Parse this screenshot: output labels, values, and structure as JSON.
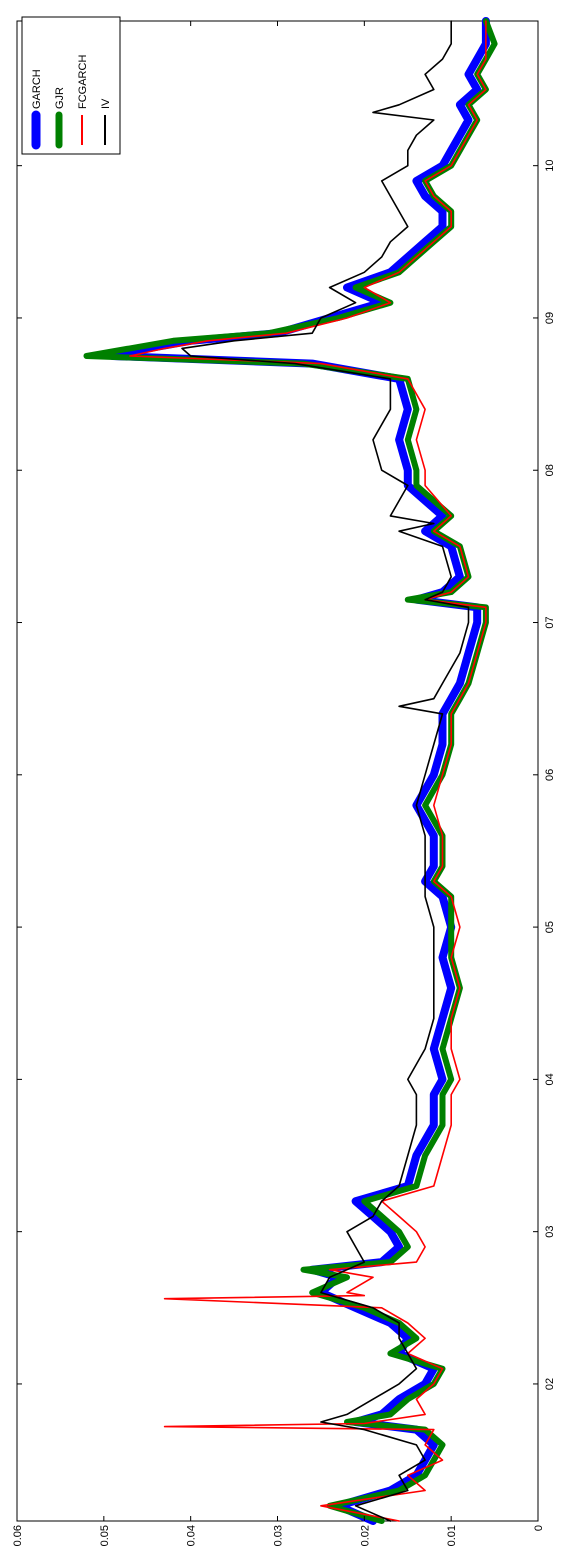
{
  "chart_data": {
    "type": "line",
    "title": "",
    "xlabel": "",
    "ylabel": "",
    "orientation": "rotated-90",
    "xlim": [
      2001.1,
      2010.95
    ],
    "ylim": [
      0,
      0.06
    ],
    "x_ticks": [
      2002,
      2003,
      2004,
      2005,
      2006,
      2007,
      2008,
      2009,
      2010
    ],
    "x_tick_labels": [
      "02",
      "03",
      "04",
      "05",
      "06",
      "07",
      "08",
      "09",
      "10"
    ],
    "y_ticks": [
      0,
      0.01,
      0.02,
      0.03,
      0.04,
      0.05,
      0.06
    ],
    "y_tick_labels": [
      "0",
      "0.01",
      "0.02",
      "0.03",
      "0.04",
      "0.05",
      "0.06"
    ],
    "grid": false,
    "legend_position": "top-right",
    "legend": [
      "GARCH",
      "GJR",
      "FCGARCH",
      "IV"
    ],
    "series": [
      {
        "name": "GARCH",
        "color": "#0000ff",
        "style": "thick",
        "x": [
          2001.1,
          2001.2,
          2001.3,
          2001.4,
          2001.5,
          2001.6,
          2001.7,
          2001.75,
          2001.8,
          2001.9,
          2002.0,
          2002.1,
          2002.2,
          2002.3,
          2002.4,
          2002.5,
          2002.6,
          2002.7,
          2002.75,
          2002.8,
          2002.9,
          2003.0,
          2003.1,
          2003.2,
          2003.3,
          2003.5,
          2003.7,
          2003.9,
          2004.0,
          2004.2,
          2004.4,
          2004.6,
          2004.8,
          2005.0,
          2005.2,
          2005.3,
          2005.4,
          2005.6,
          2005.8,
          2006.0,
          2006.2,
          2006.4,
          2006.5,
          2006.6,
          2006.8,
          2007.0,
          2007.1,
          2007.15,
          2007.2,
          2007.3,
          2007.5,
          2007.6,
          2007.7,
          2007.9,
          2008.0,
          2008.2,
          2008.4,
          2008.6,
          2008.7,
          2008.75,
          2008.8,
          2008.85,
          2008.9,
          2009.0,
          2009.1,
          2009.2,
          2009.3,
          2009.4,
          2009.5,
          2009.6,
          2009.7,
          2009.8,
          2009.9,
          2010.0,
          2010.1,
          2010.2,
          2010.3,
          2010.4,
          2010.5,
          2010.6,
          2010.7,
          2010.8,
          2010.95
        ],
        "values": [
          0.019,
          0.023,
          0.017,
          0.014,
          0.013,
          0.012,
          0.014,
          0.021,
          0.018,
          0.016,
          0.013,
          0.012,
          0.016,
          0.015,
          0.017,
          0.021,
          0.025,
          0.023,
          0.026,
          0.018,
          0.016,
          0.017,
          0.019,
          0.021,
          0.015,
          0.014,
          0.012,
          0.012,
          0.011,
          0.012,
          0.011,
          0.01,
          0.011,
          0.01,
          0.011,
          0.013,
          0.012,
          0.012,
          0.014,
          0.012,
          0.011,
          0.011,
          0.01,
          0.009,
          0.008,
          0.007,
          0.007,
          0.014,
          0.011,
          0.009,
          0.01,
          0.013,
          0.011,
          0.015,
          0.015,
          0.016,
          0.015,
          0.016,
          0.026,
          0.049,
          0.045,
          0.04,
          0.03,
          0.024,
          0.018,
          0.022,
          0.017,
          0.015,
          0.013,
          0.011,
          0.011,
          0.013,
          0.014,
          0.011,
          0.01,
          0.009,
          0.008,
          0.009,
          0.007,
          0.008,
          0.007,
          0.006,
          0.006
        ]
      },
      {
        "name": "GJR",
        "color": "#008000",
        "style": "thick",
        "x": [
          2001.1,
          2001.2,
          2001.3,
          2001.4,
          2001.5,
          2001.6,
          2001.7,
          2001.75,
          2001.8,
          2001.9,
          2002.0,
          2002.1,
          2002.2,
          2002.3,
          2002.4,
          2002.5,
          2002.6,
          2002.7,
          2002.75,
          2002.8,
          2002.9,
          2003.0,
          2003.1,
          2003.2,
          2003.3,
          2003.5,
          2003.7,
          2003.9,
          2004.0,
          2004.2,
          2004.4,
          2004.6,
          2004.8,
          2005.0,
          2005.2,
          2005.3,
          2005.4,
          2005.6,
          2005.8,
          2006.0,
          2006.2,
          2006.4,
          2006.5,
          2006.6,
          2006.8,
          2007.0,
          2007.1,
          2007.15,
          2007.2,
          2007.3,
          2007.5,
          2007.6,
          2007.7,
          2007.9,
          2008.0,
          2008.2,
          2008.4,
          2008.6,
          2008.7,
          2008.75,
          2008.8,
          2008.85,
          2008.9,
          2009.0,
          2009.1,
          2009.2,
          2009.3,
          2009.4,
          2009.5,
          2009.6,
          2009.7,
          2009.8,
          2009.9,
          2010.0,
          2010.1,
          2010.2,
          2010.3,
          2010.4,
          2010.5,
          2010.6,
          2010.7,
          2010.8,
          2010.95
        ],
        "values": [
          0.018,
          0.024,
          0.016,
          0.013,
          0.012,
          0.011,
          0.013,
          0.022,
          0.017,
          0.015,
          0.012,
          0.011,
          0.017,
          0.014,
          0.016,
          0.02,
          0.026,
          0.022,
          0.027,
          0.017,
          0.015,
          0.016,
          0.018,
          0.02,
          0.014,
          0.013,
          0.011,
          0.011,
          0.01,
          0.011,
          0.01,
          0.009,
          0.01,
          0.01,
          0.01,
          0.012,
          0.011,
          0.011,
          0.013,
          0.011,
          0.01,
          0.01,
          0.009,
          0.008,
          0.007,
          0.006,
          0.006,
          0.015,
          0.01,
          0.008,
          0.009,
          0.012,
          0.01,
          0.014,
          0.014,
          0.015,
          0.014,
          0.015,
          0.027,
          0.052,
          0.047,
          0.042,
          0.031,
          0.023,
          0.017,
          0.021,
          0.016,
          0.014,
          0.012,
          0.01,
          0.01,
          0.012,
          0.013,
          0.01,
          0.009,
          0.008,
          0.007,
          0.008,
          0.006,
          0.007,
          0.006,
          0.005,
          0.006
        ]
      },
      {
        "name": "FCGARCH",
        "color": "#ff0000",
        "style": "thin",
        "x": [
          2001.1,
          2001.2,
          2001.3,
          2001.4,
          2001.5,
          2001.6,
          2001.7,
          2001.72,
          2001.74,
          2001.8,
          2001.9,
          2002.0,
          2002.1,
          2002.2,
          2002.3,
          2002.4,
          2002.5,
          2002.56,
          2002.58,
          2002.6,
          2002.7,
          2002.75,
          2002.8,
          2002.9,
          2003.0,
          2003.1,
          2003.2,
          2003.3,
          2003.5,
          2003.7,
          2003.9,
          2004.0,
          2004.2,
          2004.4,
          2004.6,
          2004.8,
          2005.0,
          2005.2,
          2005.3,
          2005.4,
          2005.6,
          2005.8,
          2006.0,
          2006.2,
          2006.4,
          2006.5,
          2006.6,
          2006.8,
          2007.0,
          2007.1,
          2007.15,
          2007.2,
          2007.3,
          2007.5,
          2007.6,
          2007.7,
          2007.9,
          2008.0,
          2008.2,
          2008.4,
          2008.6,
          2008.7,
          2008.75,
          2008.8,
          2008.85,
          2008.9,
          2009.0,
          2009.1,
          2009.2,
          2009.3,
          2009.4,
          2009.5,
          2009.6,
          2009.7,
          2009.8,
          2009.9,
          2010.0,
          2010.1,
          2010.2,
          2010.3,
          2010.4,
          2010.5,
          2010.6,
          2010.7,
          2010.8,
          2010.95
        ],
        "values": [
          0.016,
          0.025,
          0.013,
          0.015,
          0.011,
          0.013,
          0.012,
          0.043,
          0.02,
          0.013,
          0.014,
          0.012,
          0.011,
          0.015,
          0.013,
          0.015,
          0.018,
          0.043,
          0.02,
          0.022,
          0.019,
          0.024,
          0.014,
          0.013,
          0.014,
          0.016,
          0.018,
          0.012,
          0.011,
          0.01,
          0.01,
          0.009,
          0.01,
          0.01,
          0.009,
          0.01,
          0.009,
          0.01,
          0.012,
          0.011,
          0.011,
          0.012,
          0.011,
          0.01,
          0.01,
          0.009,
          0.008,
          0.007,
          0.006,
          0.006,
          0.013,
          0.01,
          0.008,
          0.009,
          0.012,
          0.01,
          0.013,
          0.013,
          0.014,
          0.013,
          0.015,
          0.025,
          0.047,
          0.043,
          0.038,
          0.029,
          0.022,
          0.017,
          0.02,
          0.016,
          0.014,
          0.012,
          0.01,
          0.01,
          0.012,
          0.013,
          0.01,
          0.009,
          0.008,
          0.007,
          0.008,
          0.006,
          0.007,
          0.006,
          0.006,
          0.006
        ]
      },
      {
        "name": "IV",
        "color": "#000000",
        "style": "thin",
        "x": [
          2001.1,
          2001.2,
          2001.3,
          2001.4,
          2001.5,
          2001.6,
          2001.7,
          2001.75,
          2001.8,
          2001.9,
          2002.0,
          2002.1,
          2002.2,
          2002.3,
          2002.4,
          2002.5,
          2002.6,
          2002.7,
          2002.75,
          2002.8,
          2002.9,
          2003.0,
          2003.1,
          2003.2,
          2003.3,
          2003.5,
          2003.7,
          2003.9,
          2004.0,
          2004.2,
          2004.4,
          2004.6,
          2004.8,
          2005.0,
          2005.2,
          2005.3,
          2005.4,
          2005.6,
          2005.8,
          2006.0,
          2006.2,
          2006.4,
          2006.45,
          2006.5,
          2006.6,
          2006.8,
          2007.0,
          2007.1,
          2007.15,
          2007.2,
          2007.3,
          2007.5,
          2007.6,
          2007.65,
          2007.7,
          2007.9,
          2008.0,
          2008.2,
          2008.4,
          2008.6,
          2008.7,
          2008.75,
          2008.8,
          2008.85,
          2008.9,
          2009.0,
          2009.1,
          2009.2,
          2009.3,
          2009.4,
          2009.5,
          2009.6,
          2009.7,
          2009.8,
          2009.9,
          2010.0,
          2010.1,
          2010.2,
          2010.3,
          2010.35,
          2010.4,
          2010.5,
          2010.6,
          2010.7,
          2010.8,
          2010.95
        ],
        "values": [
          0.017,
          0.021,
          0.015,
          0.016,
          0.013,
          0.014,
          0.02,
          0.025,
          0.022,
          0.019,
          0.016,
          0.014,
          0.015,
          0.016,
          0.016,
          0.019,
          0.025,
          0.024,
          0.022,
          0.02,
          0.021,
          0.022,
          0.019,
          0.018,
          0.016,
          0.015,
          0.014,
          0.014,
          0.015,
          0.013,
          0.012,
          0.012,
          0.012,
          0.012,
          0.013,
          0.013,
          0.013,
          0.013,
          0.014,
          0.013,
          0.012,
          0.011,
          0.016,
          0.012,
          0.011,
          0.009,
          0.008,
          0.008,
          0.013,
          0.011,
          0.01,
          0.011,
          0.016,
          0.012,
          0.017,
          0.015,
          0.018,
          0.019,
          0.017,
          0.017,
          0.028,
          0.04,
          0.041,
          0.035,
          0.026,
          0.025,
          0.021,
          0.024,
          0.02,
          0.018,
          0.017,
          0.015,
          0.016,
          0.017,
          0.018,
          0.015,
          0.015,
          0.014,
          0.012,
          0.019,
          0.016,
          0.012,
          0.013,
          0.011,
          0.01,
          0.01
        ]
      }
    ]
  }
}
